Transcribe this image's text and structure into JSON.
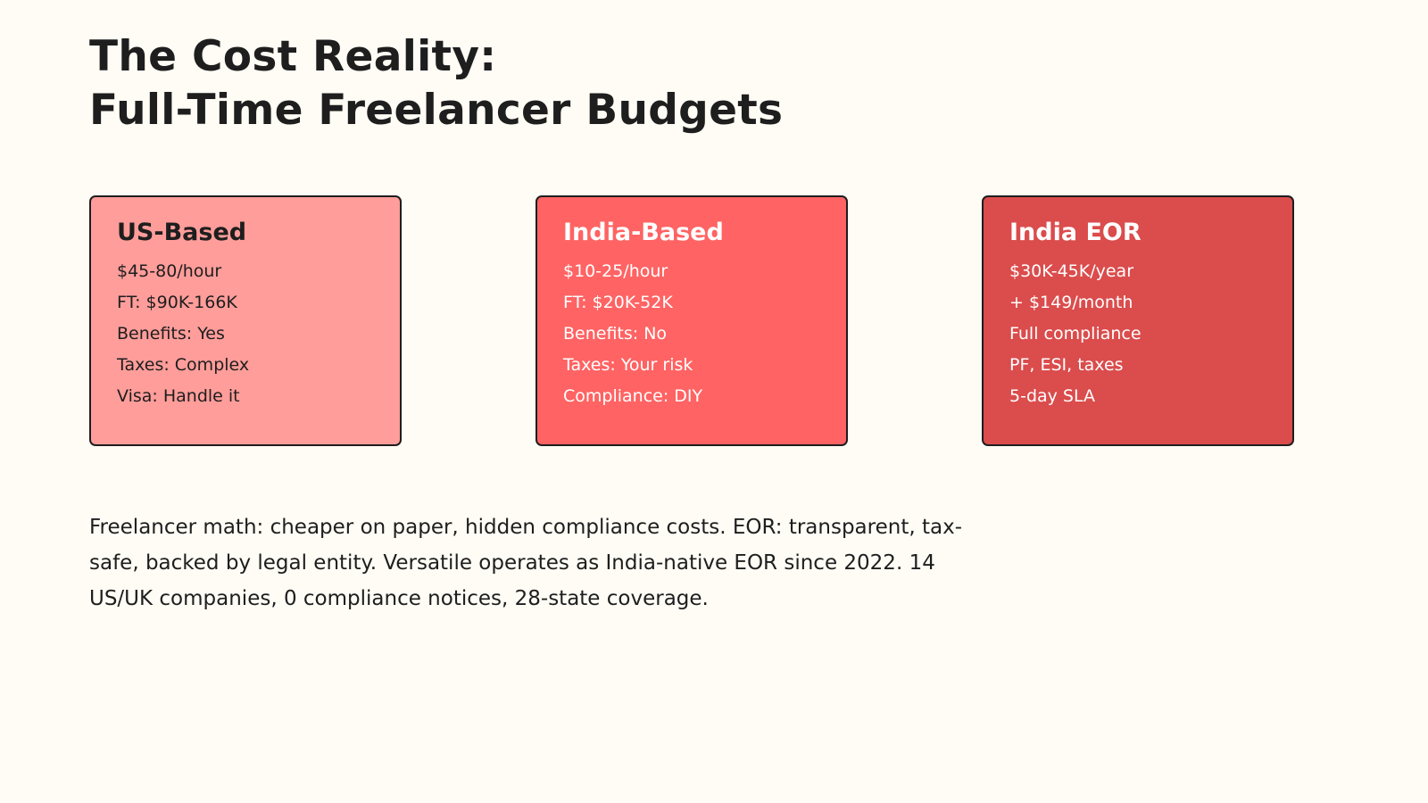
{
  "title": {
    "line1": "The Cost Reality:",
    "line2": "Full-Time Freelancer Budgets"
  },
  "cards": [
    {
      "heading": "US-Based",
      "lines": [
        "$45-80/hour",
        "FT: $90K-166K",
        "Benefits: Yes",
        "Taxes: Complex",
        "Visa: Handle it"
      ],
      "background": "#ff9d9a",
      "text_color": "#1e1e1e"
    },
    {
      "heading": "India-Based",
      "lines": [
        "$10-25/hour",
        "FT: $20K-52K",
        "Benefits: No",
        "Taxes: Your risk",
        "Compliance: DIY"
      ],
      "background": "#ff6363",
      "text_color": "#ffffff"
    },
    {
      "heading": "India EOR",
      "lines": [
        "$30K-45K/year",
        "+ $149/month",
        "Full compliance",
        "PF, ESI, taxes",
        "5-day SLA"
      ],
      "background": "#db4c4c",
      "text_color": "#ffffff"
    }
  ],
  "summary": "Freelancer math: cheaper on paper, hidden compliance costs. EOR: transparent, tax-safe, backed by legal entity. Versatile operates as India-native EOR since 2022. 14 US/UK companies, 0 compliance notices, 28-state coverage."
}
